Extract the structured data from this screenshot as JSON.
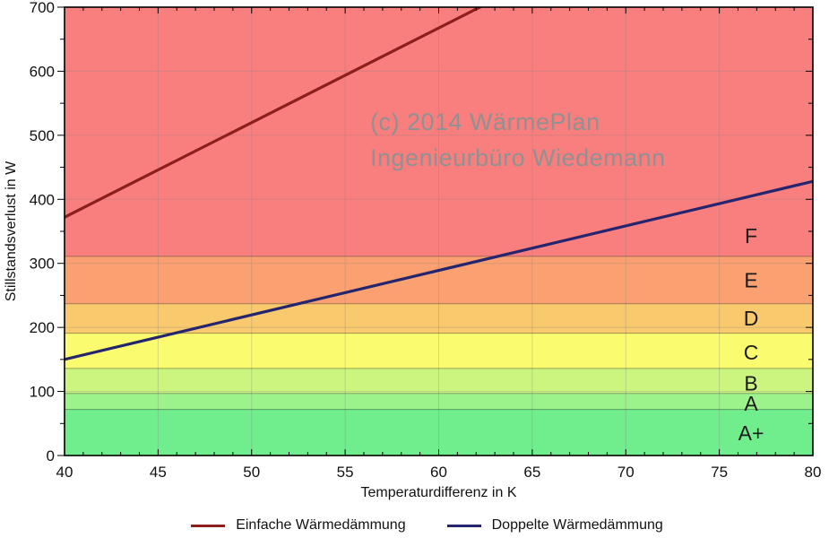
{
  "watermark": {
    "line1": "(c) 2014 WärmePlan",
    "line2": "Ingenieurbüro Wiedemann",
    "color": "#8f9192"
  },
  "chart_data": {
    "type": "line",
    "title": "",
    "xlabel": "Temperaturdifferenz in K",
    "ylabel": "Stillstandsverlust in W",
    "xlim": [
      40,
      80
    ],
    "ylim": [
      0,
      700
    ],
    "x_major_ticks": [
      40,
      45,
      50,
      55,
      60,
      65,
      70,
      75,
      80
    ],
    "x_minor_step": 1,
    "y_major_ticks": [
      0,
      100,
      200,
      300,
      400,
      500,
      600,
      700
    ],
    "y_minor_step": 50,
    "grid": true,
    "gridline_color": "rgba(130,130,130,0.30)",
    "band_boundary_color": "rgba(0,0,0,0.35)",
    "series": [
      {
        "name": "Einfache Wärmedämmung",
        "color": "#8c1f1c",
        "points": [
          [
            40,
            372
          ],
          [
            80,
            963
          ]
        ],
        "exits_top_at_x": 62.2
      },
      {
        "name": "Doppelte Wärmedämmung",
        "color": "#24256e",
        "points": [
          [
            40,
            150
          ],
          [
            80,
            428
          ]
        ]
      }
    ],
    "efficiency_bands": [
      {
        "label": "A+",
        "from": 0,
        "to": 72,
        "color": "#70ee8d",
        "label_at": 35
      },
      {
        "label": "A",
        "from": 72,
        "to": 97,
        "color": "#9df38b",
        "label_at": 81
      },
      {
        "label": "B",
        "from": 97,
        "to": 136,
        "color": "#cbf57f",
        "label_at": 113
      },
      {
        "label": "C",
        "from": 136,
        "to": 191,
        "color": "#fbfb6f",
        "label_at": 161
      },
      {
        "label": "D",
        "from": 191,
        "to": 237,
        "color": "#f9c96d",
        "label_at": 214
      },
      {
        "label": "E",
        "from": 237,
        "to": 311,
        "color": "#fba171",
        "label_at": 274
      },
      {
        "label": "F",
        "from": 311,
        "to": 700,
        "color": "#f97e7e",
        "label_at": 343
      }
    ],
    "legend_position": "bottom"
  }
}
